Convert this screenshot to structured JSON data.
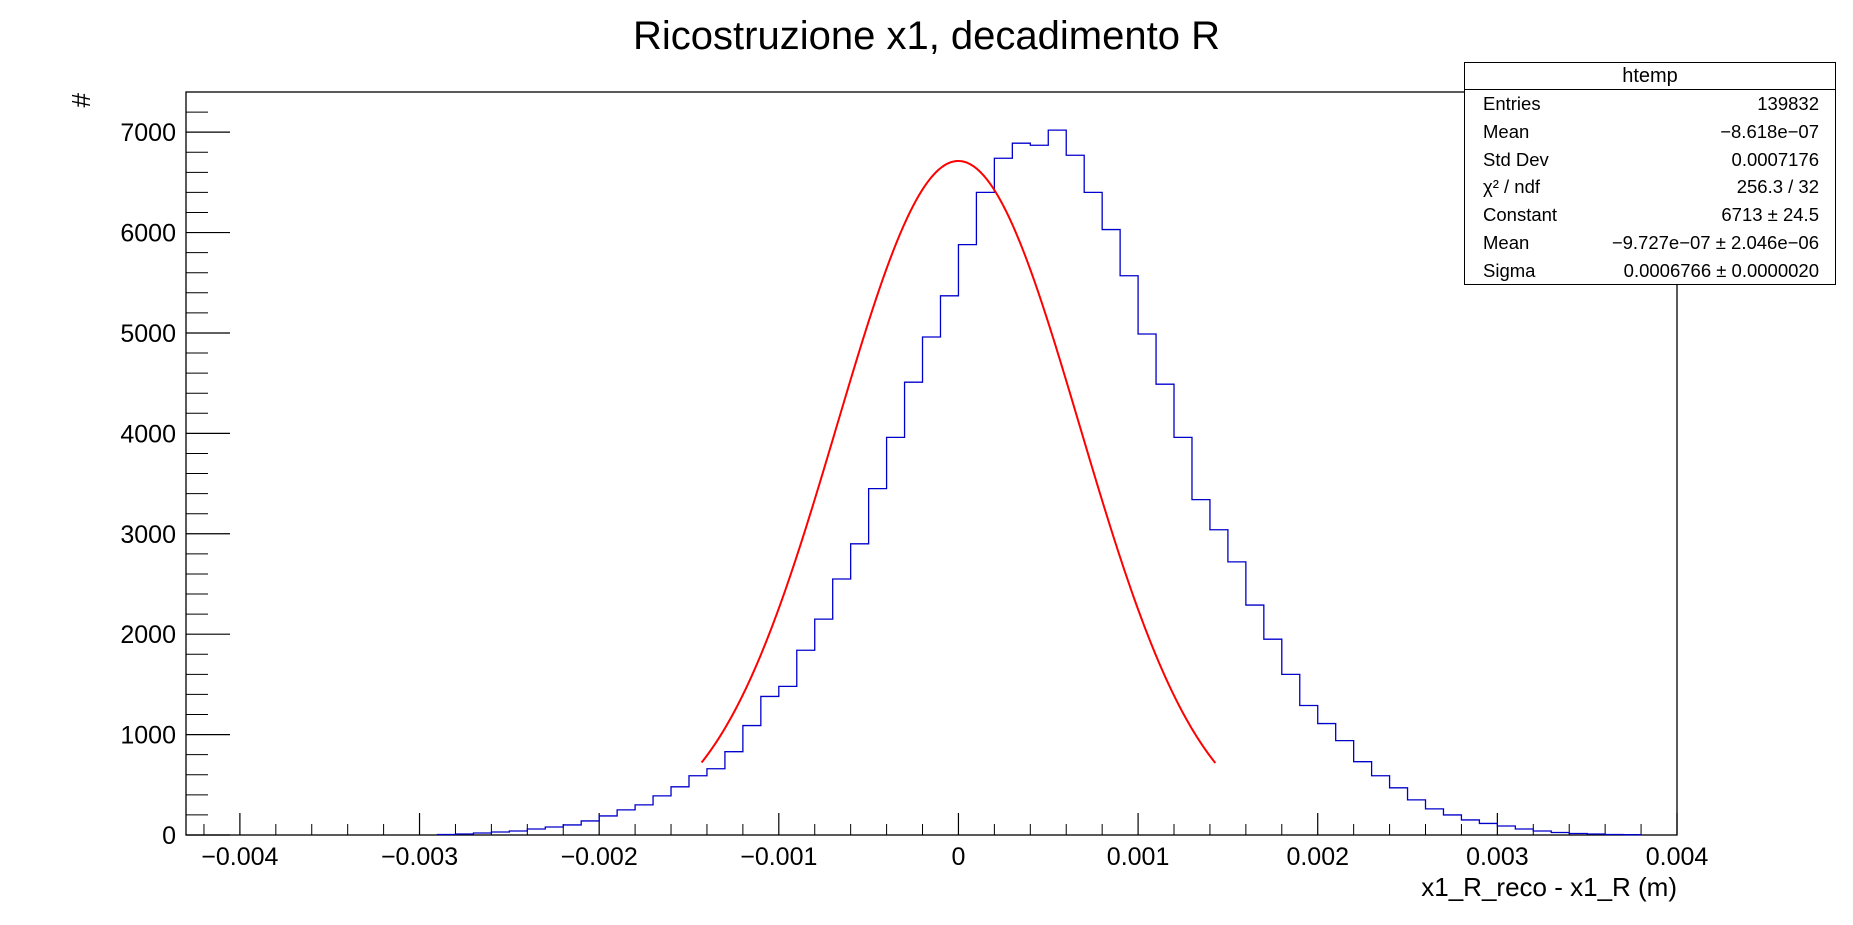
{
  "chart_data": {
    "type": "histogram",
    "title": "Ricostruzione x1, decadimento R",
    "xlabel": "x1_R_reco - x1_R (m)",
    "ylabel": "#",
    "xlim": [
      -0.0043,
      0.004
    ],
    "ylim": [
      0,
      7400
    ],
    "x_ticks": [
      -0.004,
      -0.003,
      -0.002,
      -0.001,
      0,
      0.001,
      0.002,
      0.003,
      0.004
    ],
    "x_tick_labels": [
      "−0.004",
      "−0.003",
      "−0.002",
      "−0.001",
      "0",
      "0.001",
      "0.002",
      "0.003",
      "0.004"
    ],
    "y_ticks": [
      0,
      1000,
      2000,
      3000,
      4000,
      5000,
      6000,
      7000
    ],
    "y_tick_labels": [
      "0",
      "1000",
      "2000",
      "3000",
      "4000",
      "5000",
      "6000",
      "7000"
    ],
    "histogram": {
      "name": "htemp",
      "color": "#0000cc",
      "bin_width": 0.0001,
      "bin_start": -0.0029,
      "values": [
        5,
        10,
        20,
        30,
        40,
        60,
        80,
        100,
        140,
        190,
        250,
        300,
        390,
        480,
        590,
        660,
        830,
        1090,
        1380,
        1480,
        1840,
        2150,
        2550,
        2900,
        3450,
        3960,
        4510,
        4960,
        5370,
        5880,
        6400,
        6740,
        6890,
        6870,
        7020,
        6770,
        6400,
        6030,
        5570,
        4990,
        4490,
        3960,
        3340,
        3040,
        2720,
        2290,
        1950,
        1600,
        1290,
        1110,
        940,
        730,
        590,
        470,
        350,
        260,
        200,
        150,
        115,
        90,
        60,
        40,
        25,
        15,
        10,
        5,
        3
      ]
    },
    "fit": {
      "function": "gaus",
      "color": "#ff0000",
      "constant": 6713,
      "mean": -9.727e-07,
      "sigma": 0.0006766,
      "range": [
        -0.00143,
        0.00143
      ]
    },
    "grid": false,
    "legend_placement": "top-right"
  },
  "stats_box": {
    "title": "htemp",
    "rows": [
      {
        "label": "Entries",
        "value": "139832"
      },
      {
        "label": "Mean",
        "value": "−8.618e−07"
      },
      {
        "label": "Std Dev",
        "value": "0.0007176"
      },
      {
        "label": "χ² / ndf",
        "value": "256.3 / 32"
      },
      {
        "label": "Constant",
        "value": "6713 ± 24.5"
      },
      {
        "label": "Mean",
        "value": "−9.727e−07 ± 2.046e−06"
      },
      {
        "label": "Sigma",
        "value": "0.0006766 ± 0.0000020"
      }
    ]
  }
}
